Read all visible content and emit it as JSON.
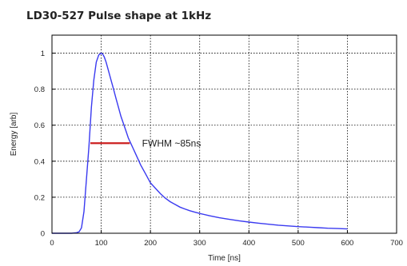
{
  "chart_data": {
    "type": "line",
    "title": "LD30-527 Pulse shape at 1kHz",
    "xlabel": "Time [ns]",
    "ylabel": "Energy [arb]",
    "xlim": [
      0,
      700
    ],
    "ylim": [
      0,
      1.1
    ],
    "x_ticks": [
      0,
      100,
      200,
      300,
      400,
      500,
      600,
      700
    ],
    "y_ticks": [
      0,
      0.2,
      0.4,
      0.6,
      0.8,
      1
    ],
    "x_tick_labels": [
      "0",
      "100",
      "200",
      "300",
      "400",
      "500",
      "600",
      "700"
    ],
    "y_tick_labels": [
      "0",
      "0.2",
      "0.4",
      "0.6",
      "0.8",
      "1"
    ],
    "grid": true,
    "series": [
      {
        "color": "#3a3af0",
        "x": [
          0,
          40,
          50,
          55,
          60,
          65,
          70,
          75,
          80,
          85,
          90,
          95,
          100,
          103,
          106,
          110,
          115,
          120,
          125,
          130,
          135,
          140,
          145,
          150,
          155,
          160,
          165,
          170,
          175,
          180,
          190,
          200,
          210,
          220,
          230,
          240,
          250,
          260,
          270,
          280,
          290,
          300,
          320,
          340,
          360,
          380,
          400,
          420,
          440,
          460,
          480,
          500,
          520,
          540,
          560,
          580,
          600
        ],
        "y": [
          0,
          0,
          0.003,
          0.008,
          0.03,
          0.12,
          0.3,
          0.48,
          0.7,
          0.85,
          0.95,
          0.99,
          1.0,
          0.995,
          0.98,
          0.95,
          0.9,
          0.85,
          0.8,
          0.75,
          0.7,
          0.65,
          0.61,
          0.57,
          0.53,
          0.5,
          0.47,
          0.44,
          0.41,
          0.38,
          0.33,
          0.28,
          0.25,
          0.22,
          0.195,
          0.175,
          0.16,
          0.145,
          0.135,
          0.125,
          0.117,
          0.11,
          0.097,
          0.086,
          0.077,
          0.069,
          0.062,
          0.056,
          0.05,
          0.045,
          0.041,
          0.037,
          0.034,
          0.031,
          0.028,
          0.026,
          0.024
        ]
      }
    ],
    "fwhm_marker": {
      "x_start": 78,
      "x_end": 158,
      "y": 0.5,
      "color": "#cc2020"
    },
    "annotations": [
      {
        "text": "FWHM ~85ns",
        "x": 183,
        "y": 0.5
      }
    ]
  }
}
